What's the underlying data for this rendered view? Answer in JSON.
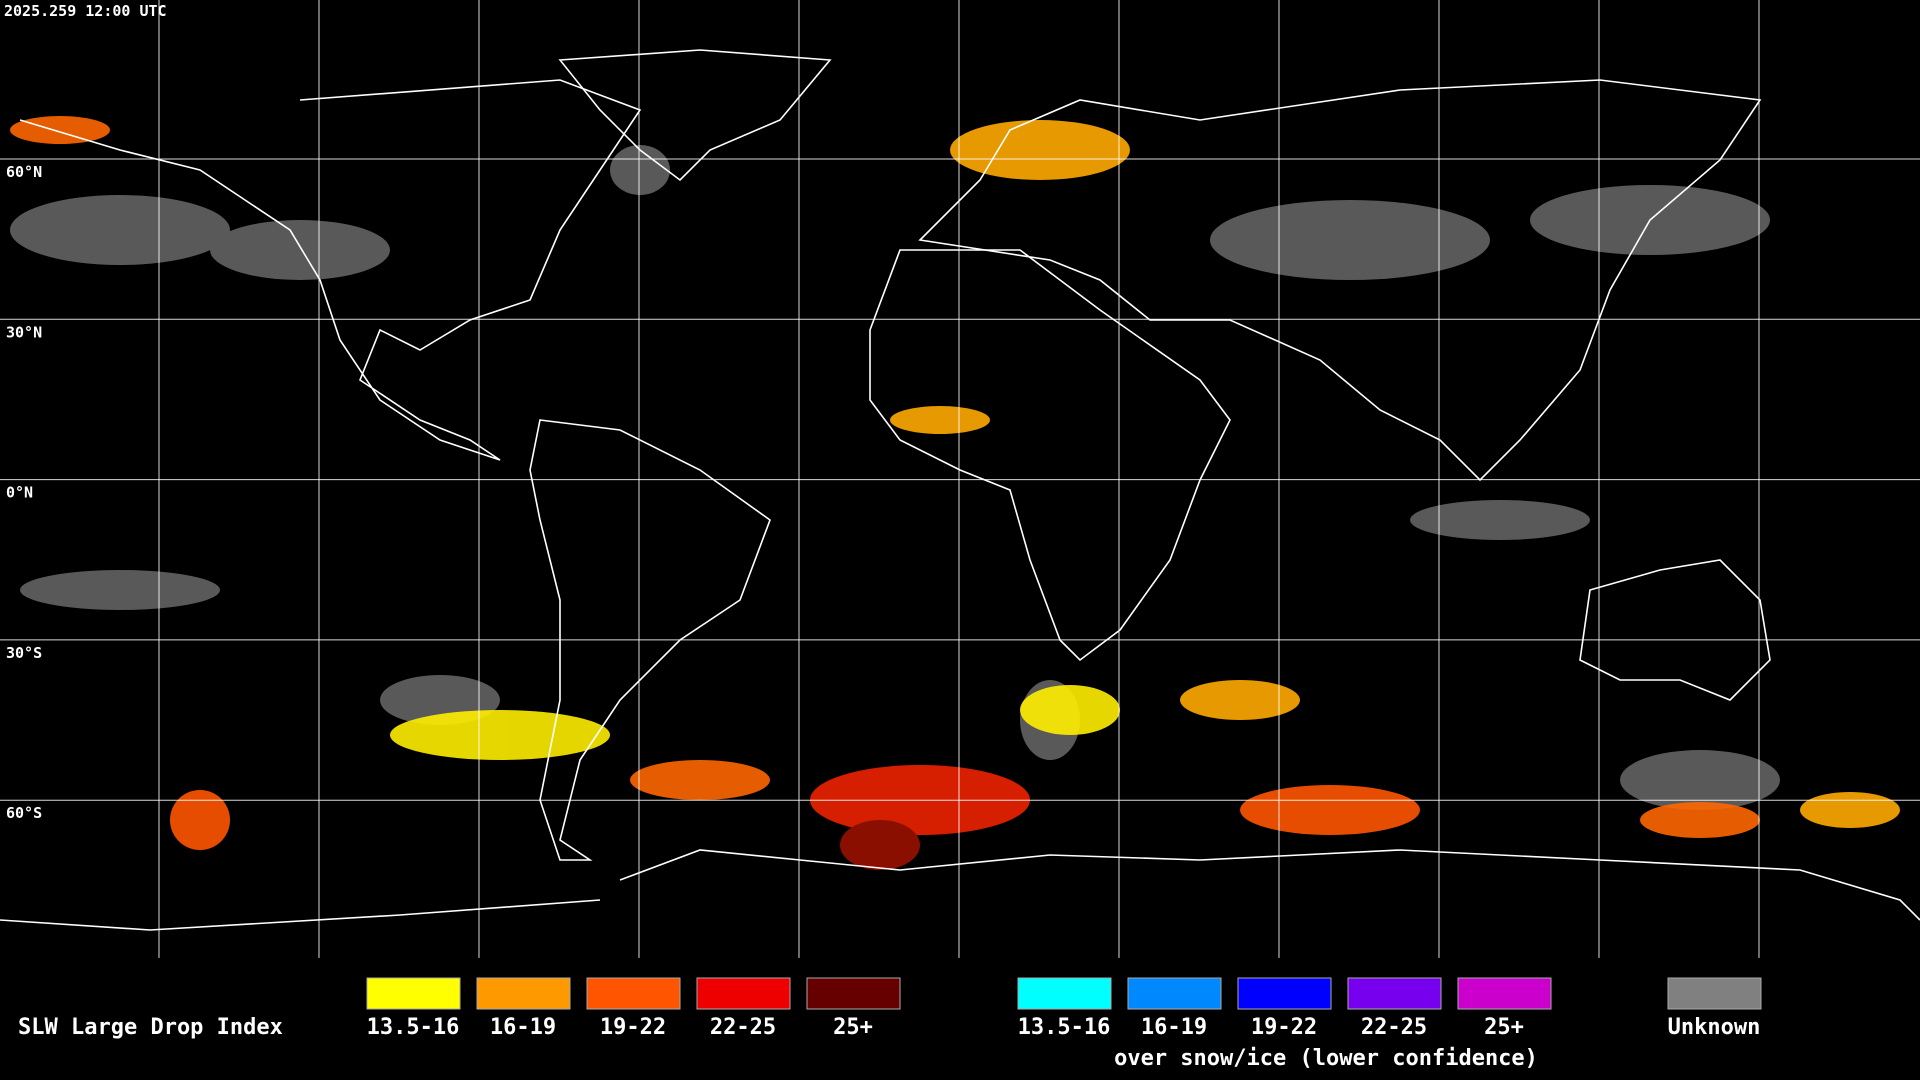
{
  "header": {
    "timestamp": "2025.259 12:00 UTC"
  },
  "map": {
    "latitude_labels": [
      "60°N",
      "30°N",
      "0°N",
      "30°S",
      "60°S"
    ]
  },
  "legend": {
    "title": "SLW Large Drop Index",
    "groups": [
      {
        "items": [
          {
            "label": "13.5-16",
            "color": "#ffff00"
          },
          {
            "label": "16-19",
            "color": "#ff9900"
          },
          {
            "label": "19-22",
            "color": "#ff5500"
          },
          {
            "label": "22-25",
            "color": "#ee0000"
          },
          {
            "label": "25+",
            "color": "#660000"
          }
        ]
      },
      {
        "items": [
          {
            "label": "13.5-16",
            "color": "#00ffff"
          },
          {
            "label": "16-19",
            "color": "#0088ff"
          },
          {
            "label": "19-22",
            "color": "#0000ff"
          },
          {
            "label": "22-25",
            "color": "#7700ee"
          },
          {
            "label": "25+",
            "color": "#cc00cc"
          }
        ],
        "caption": "over snow/ice (lower confidence)"
      }
    ],
    "unknown": {
      "label": "Unknown",
      "color": "#808080"
    }
  }
}
